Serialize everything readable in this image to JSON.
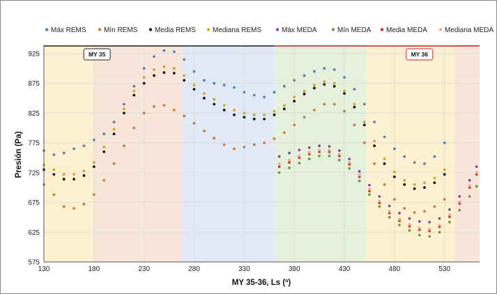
{
  "chart_data": {
    "type": "scatter",
    "title": "",
    "xlabel": "MY 35-36, Ls (º)",
    "ylabel": "Presión (Pa)",
    "xlim": [
      130,
      565
    ],
    "ylim": [
      575,
      940
    ],
    "x_ticks": [
      130,
      180,
      230,
      280,
      330,
      380,
      430,
      480,
      530
    ],
    "y_ticks": [
      575,
      625,
      675,
      725,
      775,
      825,
      875,
      925
    ],
    "grid": true,
    "legend_position": "top",
    "season_bands": [
      {
        "x0": 130,
        "x1": 180,
        "color": "#fdf1cf"
      },
      {
        "x0": 180,
        "x1": 268,
        "color": "#f8e6da"
      },
      {
        "x0": 268,
        "x1": 360,
        "color": "#e1ebf7"
      },
      {
        "x0": 360,
        "x1": 452,
        "color": "#e6f1dc"
      },
      {
        "x0": 452,
        "x1": 540,
        "color": "#fdf1cf"
      },
      {
        "x0": 540,
        "x1": 565,
        "color": "#f8e6da"
      }
    ],
    "mars_years": [
      {
        "label": "MY 35",
        "x0": 130,
        "x1": 360,
        "line_color": "#222222",
        "box_color": "#222222",
        "box_at": 183
      },
      {
        "label": "MY 36",
        "x0": 360,
        "x1": 565,
        "line_color": "#c0282d",
        "box_color": "#c0282d",
        "box_at": 505
      }
    ],
    "series": [
      {
        "name": "Máx REMS",
        "color": "#5b7fb5",
        "points": [
          [
            130,
            762
          ],
          [
            140,
            755
          ],
          [
            150,
            758
          ],
          [
            160,
            765
          ],
          [
            170,
            770
          ],
          [
            180,
            780
          ],
          [
            190,
            790
          ],
          [
            200,
            810
          ],
          [
            210,
            840
          ],
          [
            220,
            870
          ],
          [
            230,
            900
          ],
          [
            240,
            920
          ],
          [
            250,
            930
          ],
          [
            260,
            928
          ],
          [
            270,
            915
          ],
          [
            280,
            895
          ],
          [
            290,
            880
          ],
          [
            300,
            875
          ],
          [
            310,
            872
          ],
          [
            320,
            868
          ],
          [
            330,
            860
          ],
          [
            340,
            855
          ],
          [
            350,
            852
          ],
          [
            360,
            860
          ],
          [
            370,
            870
          ],
          [
            380,
            880
          ],
          [
            390,
            888
          ],
          [
            400,
            895
          ],
          [
            410,
            900
          ],
          [
            420,
            898
          ],
          [
            430,
            885
          ],
          [
            440,
            865
          ],
          [
            450,
            840
          ],
          [
            460,
            810
          ],
          [
            470,
            785
          ],
          [
            480,
            765
          ],
          [
            490,
            752
          ],
          [
            500,
            742
          ],
          [
            510,
            740
          ],
          [
            520,
            752
          ],
          [
            530,
            775
          ]
        ]
      },
      {
        "name": "Mín REMS",
        "color": "#c97a3e",
        "points": [
          [
            130,
            705
          ],
          [
            140,
            688
          ],
          [
            150,
            668
          ],
          [
            160,
            665
          ],
          [
            170,
            672
          ],
          [
            180,
            688
          ],
          [
            190,
            712
          ],
          [
            200,
            740
          ],
          [
            210,
            770
          ],
          [
            220,
            800
          ],
          [
            230,
            825
          ],
          [
            240,
            836
          ],
          [
            250,
            838
          ],
          [
            260,
            830
          ],
          [
            270,
            820
          ],
          [
            280,
            808
          ],
          [
            290,
            795
          ],
          [
            300,
            783
          ],
          [
            310,
            772
          ],
          [
            320,
            765
          ],
          [
            330,
            768
          ],
          [
            340,
            772
          ],
          [
            350,
            775
          ],
          [
            360,
            782
          ],
          [
            370,
            792
          ],
          [
            380,
            805
          ],
          [
            390,
            818
          ],
          [
            400,
            830
          ],
          [
            410,
            840
          ],
          [
            420,
            840
          ],
          [
            430,
            828
          ],
          [
            440,
            805
          ],
          [
            450,
            775
          ],
          [
            460,
            740
          ],
          [
            470,
            705
          ],
          [
            480,
            680
          ],
          [
            490,
            665
          ],
          [
            500,
            658
          ],
          [
            510,
            660
          ],
          [
            520,
            668
          ],
          [
            530,
            680
          ]
        ]
      },
      {
        "name": "Media REMS",
        "color": "#111111",
        "points": [
          [
            130,
            730
          ],
          [
            140,
            722
          ],
          [
            150,
            714
          ],
          [
            160,
            714
          ],
          [
            170,
            720
          ],
          [
            180,
            735
          ],
          [
            190,
            760
          ],
          [
            200,
            790
          ],
          [
            210,
            825
          ],
          [
            220,
            855
          ],
          [
            230,
            875
          ],
          [
            240,
            888
          ],
          [
            250,
            893
          ],
          [
            260,
            892
          ],
          [
            270,
            880
          ],
          [
            280,
            865
          ],
          [
            290,
            850
          ],
          [
            300,
            840
          ],
          [
            310,
            830
          ],
          [
            320,
            822
          ],
          [
            330,
            818
          ],
          [
            340,
            815
          ],
          [
            350,
            815
          ],
          [
            360,
            822
          ],
          [
            370,
            832
          ],
          [
            380,
            845
          ],
          [
            390,
            857
          ],
          [
            400,
            867
          ],
          [
            410,
            873
          ],
          [
            420,
            870
          ],
          [
            430,
            858
          ],
          [
            440,
            835
          ],
          [
            450,
            805
          ],
          [
            460,
            770
          ],
          [
            470,
            740
          ],
          [
            480,
            718
          ],
          [
            490,
            705
          ],
          [
            500,
            698
          ],
          [
            510,
            700
          ],
          [
            520,
            708
          ],
          [
            530,
            722
          ]
        ]
      },
      {
        "name": "Mediana REMS",
        "color": "#d4a520",
        "points": [
          [
            130,
            738
          ],
          [
            140,
            730
          ],
          [
            150,
            722
          ],
          [
            160,
            722
          ],
          [
            170,
            728
          ],
          [
            180,
            742
          ],
          [
            190,
            768
          ],
          [
            200,
            798
          ],
          [
            210,
            832
          ],
          [
            220,
            862
          ],
          [
            230,
            885
          ],
          [
            240,
            898
          ],
          [
            250,
            903
          ],
          [
            260,
            900
          ],
          [
            270,
            888
          ],
          [
            280,
            872
          ],
          [
            290,
            858
          ],
          [
            300,
            848
          ],
          [
            310,
            838
          ],
          [
            320,
            830
          ],
          [
            330,
            825
          ],
          [
            340,
            822
          ],
          [
            350,
            822
          ],
          [
            360,
            828
          ],
          [
            370,
            838
          ],
          [
            380,
            852
          ],
          [
            390,
            862
          ],
          [
            400,
            872
          ],
          [
            410,
            878
          ],
          [
            420,
            875
          ],
          [
            430,
            862
          ],
          [
            440,
            840
          ],
          [
            450,
            810
          ],
          [
            460,
            778
          ],
          [
            470,
            748
          ],
          [
            480,
            726
          ],
          [
            490,
            712
          ],
          [
            500,
            705
          ],
          [
            510,
            708
          ],
          [
            520,
            716
          ],
          [
            530,
            730
          ]
        ]
      },
      {
        "name": "Máx MEDA",
        "color": "#7a4ea3",
        "points": [
          [
            365,
            752
          ],
          [
            375,
            758
          ],
          [
            385,
            763
          ],
          [
            395,
            767
          ],
          [
            405,
            770
          ],
          [
            415,
            769
          ],
          [
            425,
            762
          ],
          [
            435,
            748
          ],
          [
            445,
            727
          ],
          [
            455,
            704
          ],
          [
            465,
            685
          ],
          [
            475,
            669
          ],
          [
            485,
            657
          ],
          [
            495,
            648
          ],
          [
            505,
            643
          ],
          [
            515,
            642
          ],
          [
            525,
            648
          ],
          [
            535,
            663
          ],
          [
            545,
            685
          ],
          [
            555,
            712
          ],
          [
            562,
            735
          ]
        ]
      },
      {
        "name": "Mín MEDA",
        "color": "#6f9a3c",
        "points": [
          [
            365,
            725
          ],
          [
            375,
            733
          ],
          [
            385,
            741
          ],
          [
            395,
            748
          ],
          [
            405,
            753
          ],
          [
            415,
            753
          ],
          [
            425,
            746
          ],
          [
            435,
            732
          ],
          [
            445,
            711
          ],
          [
            455,
            688
          ],
          [
            465,
            668
          ],
          [
            475,
            650
          ],
          [
            485,
            637
          ],
          [
            495,
            628
          ],
          [
            505,
            620
          ],
          [
            515,
            618
          ],
          [
            525,
            625
          ],
          [
            535,
            642
          ],
          [
            545,
            662
          ],
          [
            555,
            685
          ],
          [
            562,
            702
          ]
        ]
      },
      {
        "name": "Media MEDA",
        "color": "#d0322d",
        "points": [
          [
            365,
            735
          ],
          [
            375,
            742
          ],
          [
            385,
            750
          ],
          [
            395,
            756
          ],
          [
            405,
            760
          ],
          [
            415,
            760
          ],
          [
            425,
            753
          ],
          [
            435,
            739
          ],
          [
            445,
            718
          ],
          [
            455,
            694
          ],
          [
            465,
            674
          ],
          [
            475,
            657
          ],
          [
            485,
            644
          ],
          [
            495,
            635
          ],
          [
            505,
            629
          ],
          [
            515,
            627
          ],
          [
            525,
            634
          ],
          [
            535,
            651
          ],
          [
            545,
            673
          ],
          [
            555,
            700
          ],
          [
            562,
            722
          ]
        ]
      },
      {
        "name": "Mediana MEDA",
        "color": "#f0a48c",
        "points": [
          [
            365,
            740
          ],
          [
            375,
            746
          ],
          [
            385,
            753
          ],
          [
            395,
            759
          ],
          [
            405,
            763
          ],
          [
            415,
            763
          ],
          [
            425,
            756
          ],
          [
            435,
            742
          ],
          [
            445,
            721
          ],
          [
            455,
            697
          ],
          [
            465,
            677
          ],
          [
            475,
            660
          ],
          [
            485,
            647
          ],
          [
            495,
            638
          ],
          [
            505,
            632
          ],
          [
            515,
            630
          ],
          [
            525,
            637
          ],
          [
            535,
            654
          ],
          [
            545,
            676
          ],
          [
            555,
            703
          ],
          [
            562,
            725
          ]
        ]
      }
    ]
  }
}
